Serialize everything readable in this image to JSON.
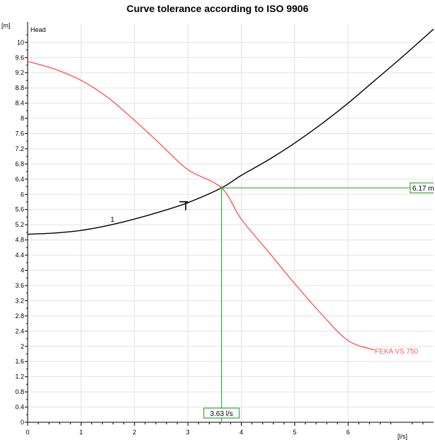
{
  "chart_data": {
    "type": "line",
    "title": "Curve tolerance according to ISO 9906",
    "y_unit": "[m]",
    "y_series_label": "Head",
    "x_unit": "[l/s]",
    "xlim": [
      0,
      7.6
    ],
    "ylim": [
      0,
      10.5
    ],
    "x_ticks": [
      0,
      1,
      2,
      3,
      4,
      5,
      6
    ],
    "y_ticks": [
      0,
      0.4,
      0.8,
      1.2,
      1.6,
      2,
      2.4,
      2.8,
      3.2,
      3.6,
      4,
      4.4,
      4.8,
      5.2,
      5.6,
      6,
      6.4,
      6.8,
      7.2,
      7.6,
      8,
      8.4,
      8.8,
      9.2,
      9.6,
      10
    ],
    "grid": true,
    "series": [
      {
        "name": "FEKA VS 750",
        "color": "#ff5a5a",
        "x": [
          0,
          0.5,
          1,
          1.5,
          2,
          2.5,
          3,
          3.63,
          4,
          4.5,
          5,
          5.5,
          6,
          6.5
        ],
        "y": [
          9.5,
          9.3,
          9.0,
          8.55,
          7.95,
          7.3,
          6.65,
          6.17,
          5.35,
          4.5,
          3.65,
          2.85,
          2.15,
          1.9
        ]
      },
      {
        "name": "1",
        "color": "#000000",
        "x": [
          0,
          0.5,
          1,
          1.5,
          2,
          2.5,
          3,
          3.63,
          4,
          4.5,
          5,
          5.5,
          6,
          6.5,
          7,
          7.6
        ],
        "y": [
          4.95,
          4.98,
          5.05,
          5.18,
          5.35,
          5.55,
          5.78,
          6.17,
          6.5,
          6.9,
          7.35,
          7.85,
          8.4,
          9.0,
          9.6,
          10.35
        ]
      }
    ],
    "operating_point": {
      "x": 3.63,
      "y": 6.17,
      "x_label": "3.63 l/s",
      "y_label": "6.17 m"
    }
  }
}
